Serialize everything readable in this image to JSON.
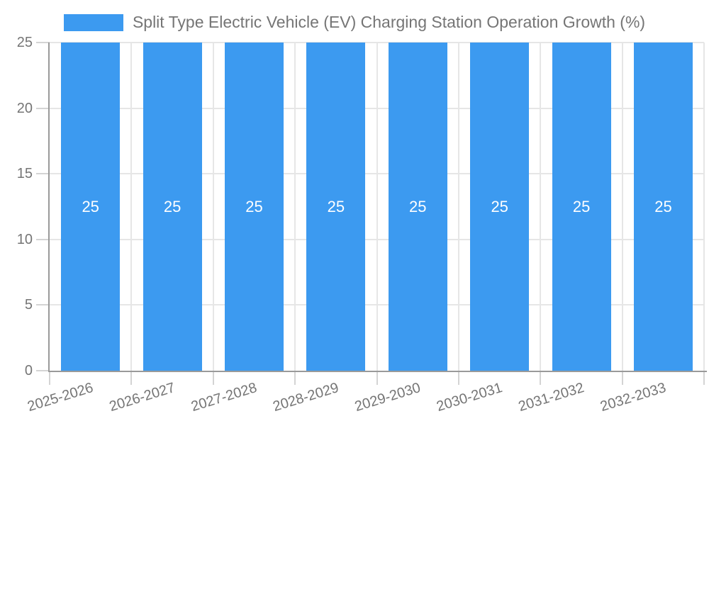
{
  "chart_data": {
    "type": "bar",
    "title": "Split Type Electric Vehicle (EV) Charging Station Operation Growth (%)",
    "categories": [
      "2025-2026",
      "2026-2027",
      "2027-2028",
      "2028-2029",
      "2029-2030",
      "2030-2031",
      "2031-2032",
      "2032-2033"
    ],
    "values": [
      25,
      25,
      25,
      25,
      25,
      25,
      25,
      25
    ],
    "data_labels": [
      "25",
      "25",
      "25",
      "25",
      "25",
      "25",
      "25",
      "25"
    ],
    "xlabel": "",
    "ylabel": "",
    "ylim": [
      0,
      25
    ],
    "yticks": [
      0,
      5,
      10,
      15,
      20,
      25
    ],
    "grid": "on",
    "legend_position": "top",
    "legend_entries": [
      "Split Type Electric Vehicle (EV) Charging Station Operation Growth (%)"
    ]
  },
  "colors": {
    "bar": "#3C9AF0",
    "grid_line": "#E6E6E6",
    "tick_line": "#D4D4D4",
    "axis_line": "#9A9A9A",
    "axis_label": "#757575",
    "legend_text": "#757575",
    "data_label": "#FFFFFF",
    "background": "#FFFFFF"
  }
}
